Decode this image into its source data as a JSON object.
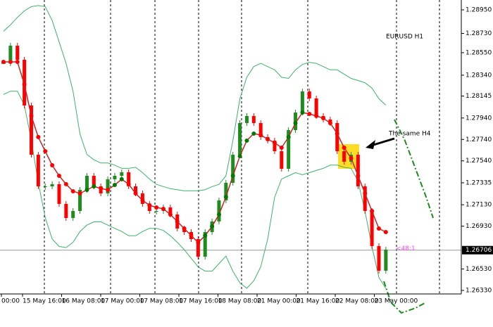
{
  "chart_data": {
    "type": "candlestick",
    "title": "EURUSD H1",
    "annotation": "The same H4",
    "marker_label": "<48:1",
    "current_price": 1.26706,
    "x_labels": [
      "00:00",
      "15 May 16:00",
      "16 May 08:00",
      "17 May 00:00",
      "17 May 08:00",
      "17 May 16:00",
      "18 May 08:00",
      "21 May 00:00",
      "21 May 16:00",
      "22 May 08:00",
      "23 May 00:00"
    ],
    "close": [
      1.28451,
      1.28615,
      1.28484,
      1.28057,
      1.27597,
      1.27302,
      1.27302,
      1.27322,
      1.27138,
      1.27006,
      1.27072,
      1.27269,
      1.274,
      1.27302,
      1.27236,
      1.27368,
      1.274,
      1.27433,
      1.27302,
      1.27236,
      1.27138,
      1.27072,
      1.27072,
      1.27105,
      1.27039,
      1.26908,
      1.26875,
      1.26809,
      1.26645,
      1.26875,
      1.26974,
      1.27171,
      1.27335,
      1.27597,
      1.27893,
      1.27959,
      1.27893,
      1.27762,
      1.27729,
      1.2763,
      1.27466,
      1.27827,
      1.27991,
      1.28188,
      1.28123,
      1.27959,
      1.27926,
      1.27893,
      1.2763,
      1.27532,
      1.27597,
      1.27302,
      1.27072,
      1.26744,
      1.26514,
      1.26711
    ],
    "ma": [
      1.28464,
      1.28464,
      1.28464,
      1.28254,
      1.27959,
      1.27762,
      1.2763,
      1.27499,
      1.274,
      1.27322,
      1.27256,
      1.27236,
      1.27269,
      1.27302,
      1.27282,
      1.27269,
      1.27315,
      1.27368,
      1.27322,
      1.27236,
      1.27171,
      1.27125,
      1.27105,
      1.27092,
      1.27039,
      1.26974,
      1.26908,
      1.26842,
      1.26777,
      1.26842,
      1.26928,
      1.27039,
      1.27203,
      1.274,
      1.27584,
      1.27729,
      1.27794,
      1.27781,
      1.27742,
      1.27709,
      1.27663,
      1.27762,
      1.27893,
      1.27991,
      1.27978,
      1.27959,
      1.27939,
      1.27893,
      1.27794,
      1.27663,
      1.27565,
      1.274,
      1.27236,
      1.27072,
      1.26908,
      1.26875
    ],
    "upper_band": [
      1.2875,
      1.2881,
      1.2888,
      1.2894,
      1.2898,
      1.2899,
      1.2898,
      1.2885,
      1.2865,
      1.2845,
      1.2819,
      1.2779,
      1.276,
      1.2755,
      1.2752,
      1.2752,
      1.275,
      1.2747,
      1.2747,
      1.2748,
      1.2743,
      1.2737,
      1.2732,
      1.273,
      1.2728,
      1.2727,
      1.2726,
      1.2726,
      1.2726,
      1.2727,
      1.273,
      1.2732,
      1.274,
      1.2773,
      1.2812,
      1.2832,
      1.2842,
      1.2845,
      1.2842,
      1.2839,
      1.2832,
      1.2831,
      1.2839,
      1.2844,
      1.2846,
      1.2845,
      1.2842,
      1.2839,
      1.2839,
      1.2835,
      1.2831,
      1.2829,
      1.2827,
      1.2822,
      1.2812,
      1.2806
    ],
    "lower_band": [
      1.2816,
      1.2819,
      1.2819,
      1.2806,
      1.2773,
      1.2734,
      1.2701,
      1.2681,
      1.2674,
      1.2673,
      1.2678,
      1.2688,
      1.2694,
      1.2697,
      1.2697,
      1.2694,
      1.2691,
      1.2688,
      1.2684,
      1.2684,
      1.2688,
      1.2691,
      1.2691,
      1.2689,
      1.2684,
      1.2678,
      1.2671,
      1.2663,
      1.2655,
      1.2651,
      1.2651,
      1.2658,
      1.2665,
      1.2651,
      1.264,
      1.2635,
      1.2642,
      1.2655,
      1.2681,
      1.272,
      1.2737,
      1.274,
      1.2743,
      1.2741,
      1.2743,
      1.2745,
      1.2747,
      1.275,
      1.275,
      1.2748,
      1.2747,
      1.2735,
      1.2707,
      1.2674,
      1.2645,
      1.2635
    ],
    "ylim": [
      1.26297,
      1.29042
    ],
    "yticks": [
      {
        "value": 1.2895,
        "label": "1.28950"
      },
      {
        "value": 1.2873,
        "label": "1.28730"
      },
      {
        "value": 1.2855,
        "label": "1.28550"
      },
      {
        "value": 1.2834,
        "label": "1.28340"
      },
      1.28145,
      {
        "value": 1.2794,
        "label": "1.27940"
      },
      {
        "value": 1.2774,
        "label": "1.27740"
      },
      {
        "value": 1.2754,
        "label": "1.27540"
      },
      1.27335,
      {
        "value": 1.2713,
        "label": "1.27130"
      },
      {
        "value": 1.2693,
        "label": "1.26930"
      },
      {
        "value": 1.2653,
        "label": "1.26530"
      },
      {
        "value": 1.2633,
        "label": "1.26330"
      }
    ],
    "up_color": "#1e8c1e",
    "down_color": "#ff0000",
    "band_color": "#3cb464"
  }
}
